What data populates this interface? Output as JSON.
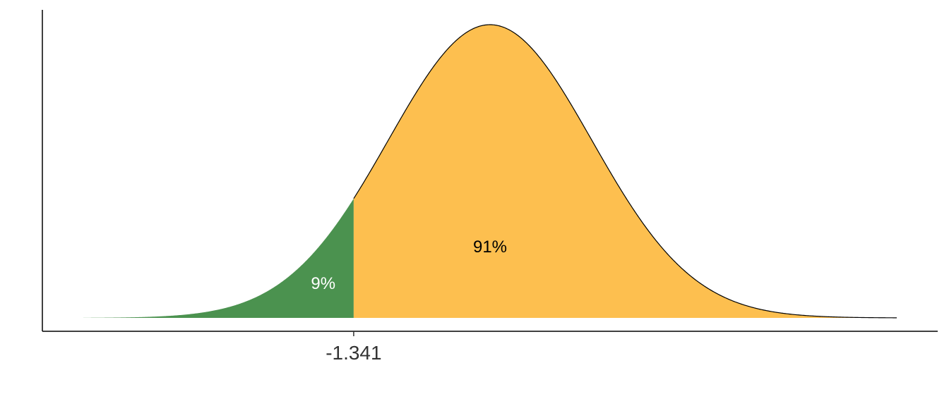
{
  "chart_data": {
    "type": "area",
    "title": "",
    "xlabel": "",
    "ylabel": "",
    "distribution": "normal",
    "mean": 0,
    "sd": 1,
    "xlim": [
      -4,
      4
    ],
    "cutoff": -1.341,
    "x_tick_labels": [
      "-1.341"
    ],
    "regions": [
      {
        "label": "9%",
        "from": -4,
        "to": -1.341,
        "probability": 0.09,
        "color": "#4b924f",
        "label_color": "#ffffff"
      },
      {
        "label": "91%",
        "from": -1.341,
        "to": 4,
        "probability": 0.91,
        "color": "#fdbf4f",
        "label_color": "#000000"
      }
    ],
    "axis_color": "#000000",
    "curve_color": "#000000",
    "grid": false,
    "legend": "none"
  }
}
